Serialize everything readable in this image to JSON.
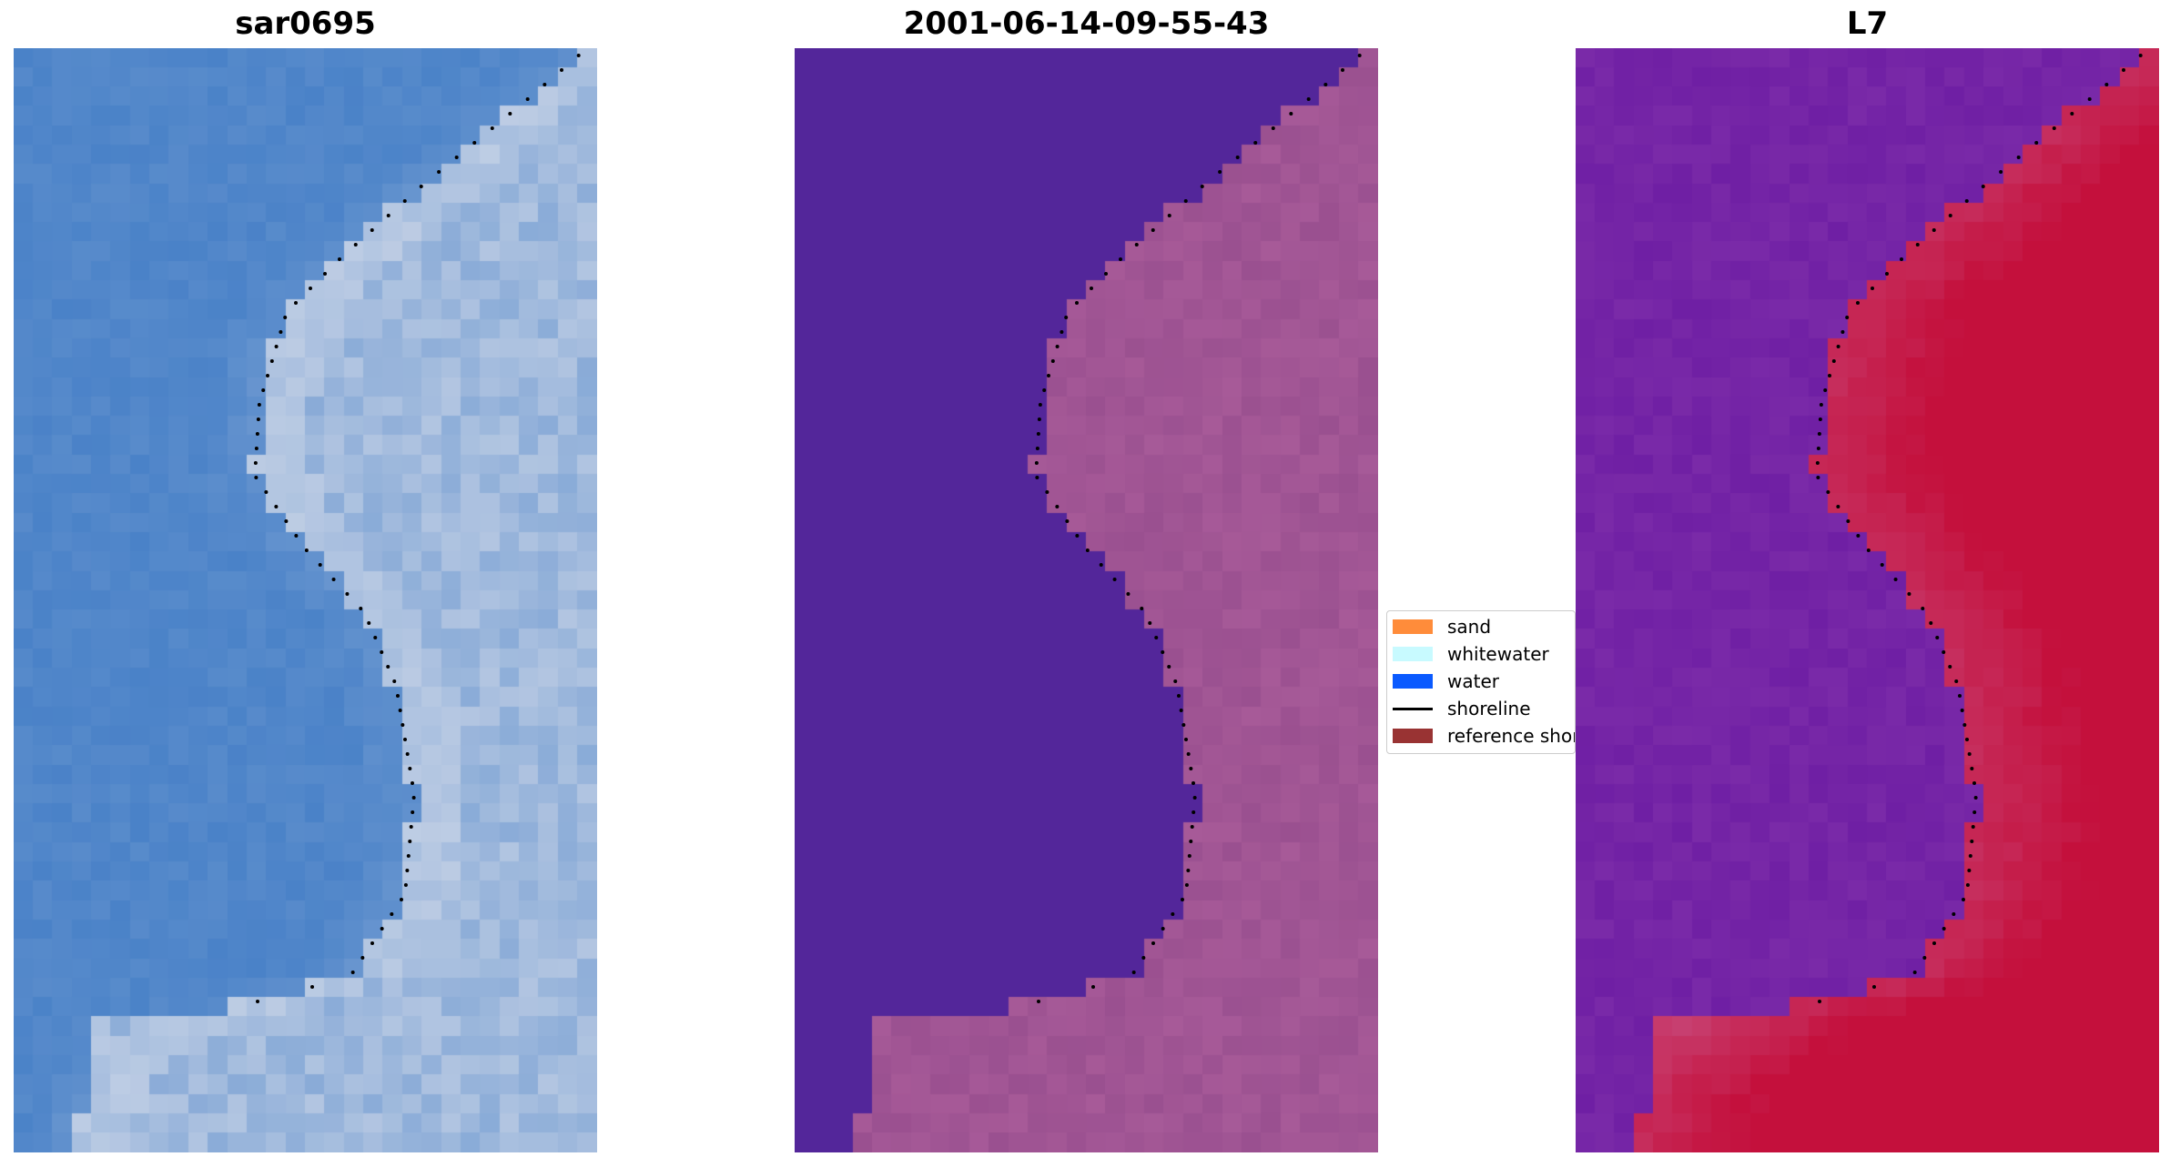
{
  "panels": [
    {
      "title": "sar0695",
      "style": "rgb"
    },
    {
      "title": "2001-06-14-09-55-43",
      "style": "classified"
    },
    {
      "title": "L7",
      "style": "index"
    }
  ],
  "legend": {
    "items": [
      {
        "label": "sand",
        "kind": "patch",
        "color": "#ff8c3a"
      },
      {
        "label": "whitewater",
        "kind": "patch",
        "color": "#c8faff"
      },
      {
        "label": "water",
        "kind": "patch",
        "color": "#0a5aff"
      },
      {
        "label": "shoreline",
        "kind": "line",
        "color": "#000000"
      },
      {
        "label": "reference shoreline",
        "kind": "patch",
        "color": "#993333"
      }
    ]
  },
  "colors": {
    "water_blue": "#4a82c8",
    "sea_purple": "#53269a",
    "land_mauve": "#9a5090",
    "index_purple": "#7a2aa8",
    "index_red": "#c4103c"
  }
}
